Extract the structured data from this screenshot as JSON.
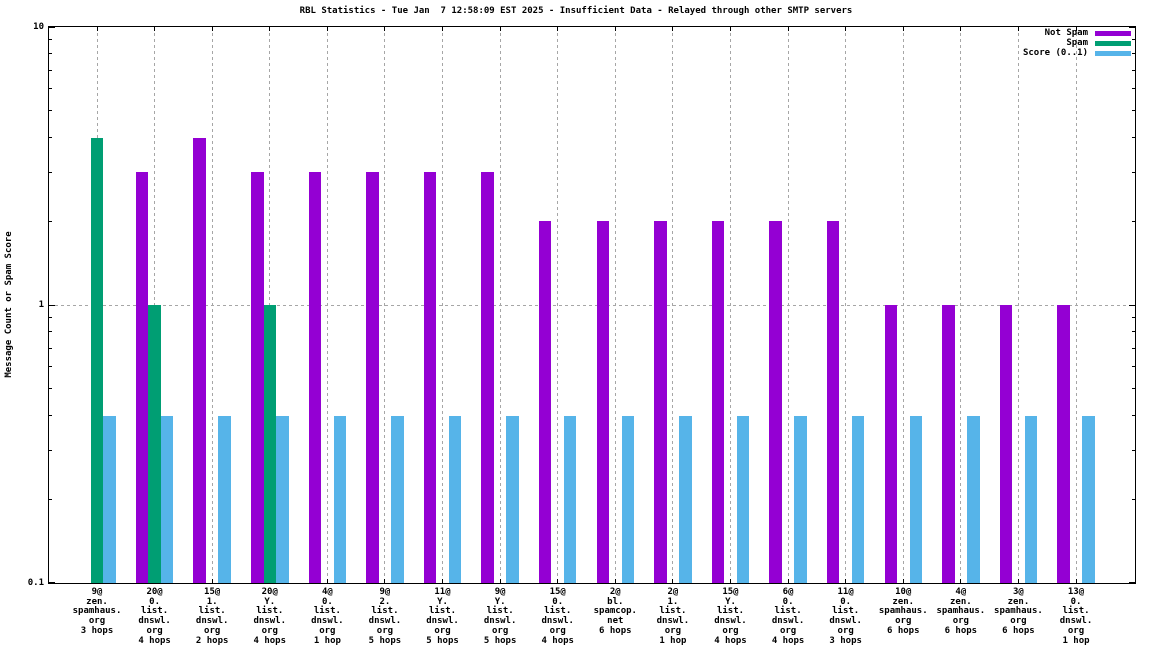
{
  "title": "RBL Statistics - Tue Jan  7 12:58:09 EST 2025 - Insufficient Data - Relayed through other SMTP servers",
  "chart_data": {
    "type": "bar",
    "scale_y": "log",
    "ylim": [
      0.1,
      10
    ],
    "ylabel": "Message Count or Spam Score",
    "y_ticks": [
      {
        "value": 10,
        "label": "10"
      },
      {
        "value": 1,
        "label": "1"
      },
      {
        "value": 0.1,
        "label": "0.1"
      }
    ],
    "grid": true,
    "legend_position": "top-right-inside",
    "grid_color": "#a6a6a6",
    "axis_color": "#000000",
    "background": "#ffffff",
    "categories": [
      [
        "9@",
        "zen.",
        "spamhaus.",
        "org",
        "3 hops"
      ],
      [
        "20@",
        "0.",
        "list.",
        "dnswl.",
        "org",
        "4 hops"
      ],
      [
        "15@",
        "1.",
        "list.",
        "dnswl.",
        "org",
        "2 hops"
      ],
      [
        "20@",
        "Y.",
        "list.",
        "dnswl.",
        "org",
        "4 hops"
      ],
      [
        "4@",
        "0.",
        "list.",
        "dnswl.",
        "org",
        "1 hop"
      ],
      [
        "9@",
        "2.",
        "list.",
        "dnswl.",
        "org",
        "5 hops"
      ],
      [
        "11@",
        "Y.",
        "list.",
        "dnswl.",
        "org",
        "5 hops"
      ],
      [
        "9@",
        "Y.",
        "list.",
        "dnswl.",
        "org",
        "5 hops"
      ],
      [
        "15@",
        "0.",
        "list.",
        "dnswl.",
        "org",
        "4 hops"
      ],
      [
        "2@",
        "bl.",
        "spamcop.",
        "net",
        "6 hops"
      ],
      [
        "2@",
        "1.",
        "list.",
        "dnswl.",
        "org",
        "1 hop"
      ],
      [
        "15@",
        "Y.",
        "list.",
        "dnswl.",
        "org",
        "4 hops"
      ],
      [
        "6@",
        "0.",
        "list.",
        "dnswl.",
        "org",
        "4 hops"
      ],
      [
        "11@",
        "0.",
        "list.",
        "dnswl.",
        "org",
        "3 hops"
      ],
      [
        "10@",
        "zen.",
        "spamhaus.",
        "org",
        "6 hops"
      ],
      [
        "4@",
        "zen.",
        "spamhaus.",
        "org",
        "6 hops"
      ],
      [
        "3@",
        "zen.",
        "spamhaus.",
        "org",
        "6 hops"
      ],
      [
        "13@",
        "0.",
        "list.",
        "dnswl.",
        "org",
        "1 hop"
      ]
    ],
    "series": [
      {
        "name": "Not Spam",
        "color": "#9400d3",
        "values": [
          null,
          3,
          4,
          3,
          3,
          3,
          3,
          3,
          2,
          2,
          2,
          2,
          2,
          2,
          1,
          1,
          1,
          1
        ]
      },
      {
        "name": "Spam",
        "color": "#009e73",
        "values": [
          4,
          1,
          null,
          1,
          null,
          null,
          null,
          null,
          null,
          null,
          null,
          null,
          null,
          null,
          null,
          null,
          null,
          null
        ]
      },
      {
        "name": "Score (0..1)",
        "color": "#56b4e9",
        "values": [
          0.4,
          0.4,
          0.4,
          0.4,
          0.4,
          0.4,
          0.4,
          0.4,
          0.4,
          0.4,
          0.4,
          0.4,
          0.4,
          0.4,
          0.4,
          0.4,
          0.4,
          0.4
        ]
      }
    ]
  }
}
